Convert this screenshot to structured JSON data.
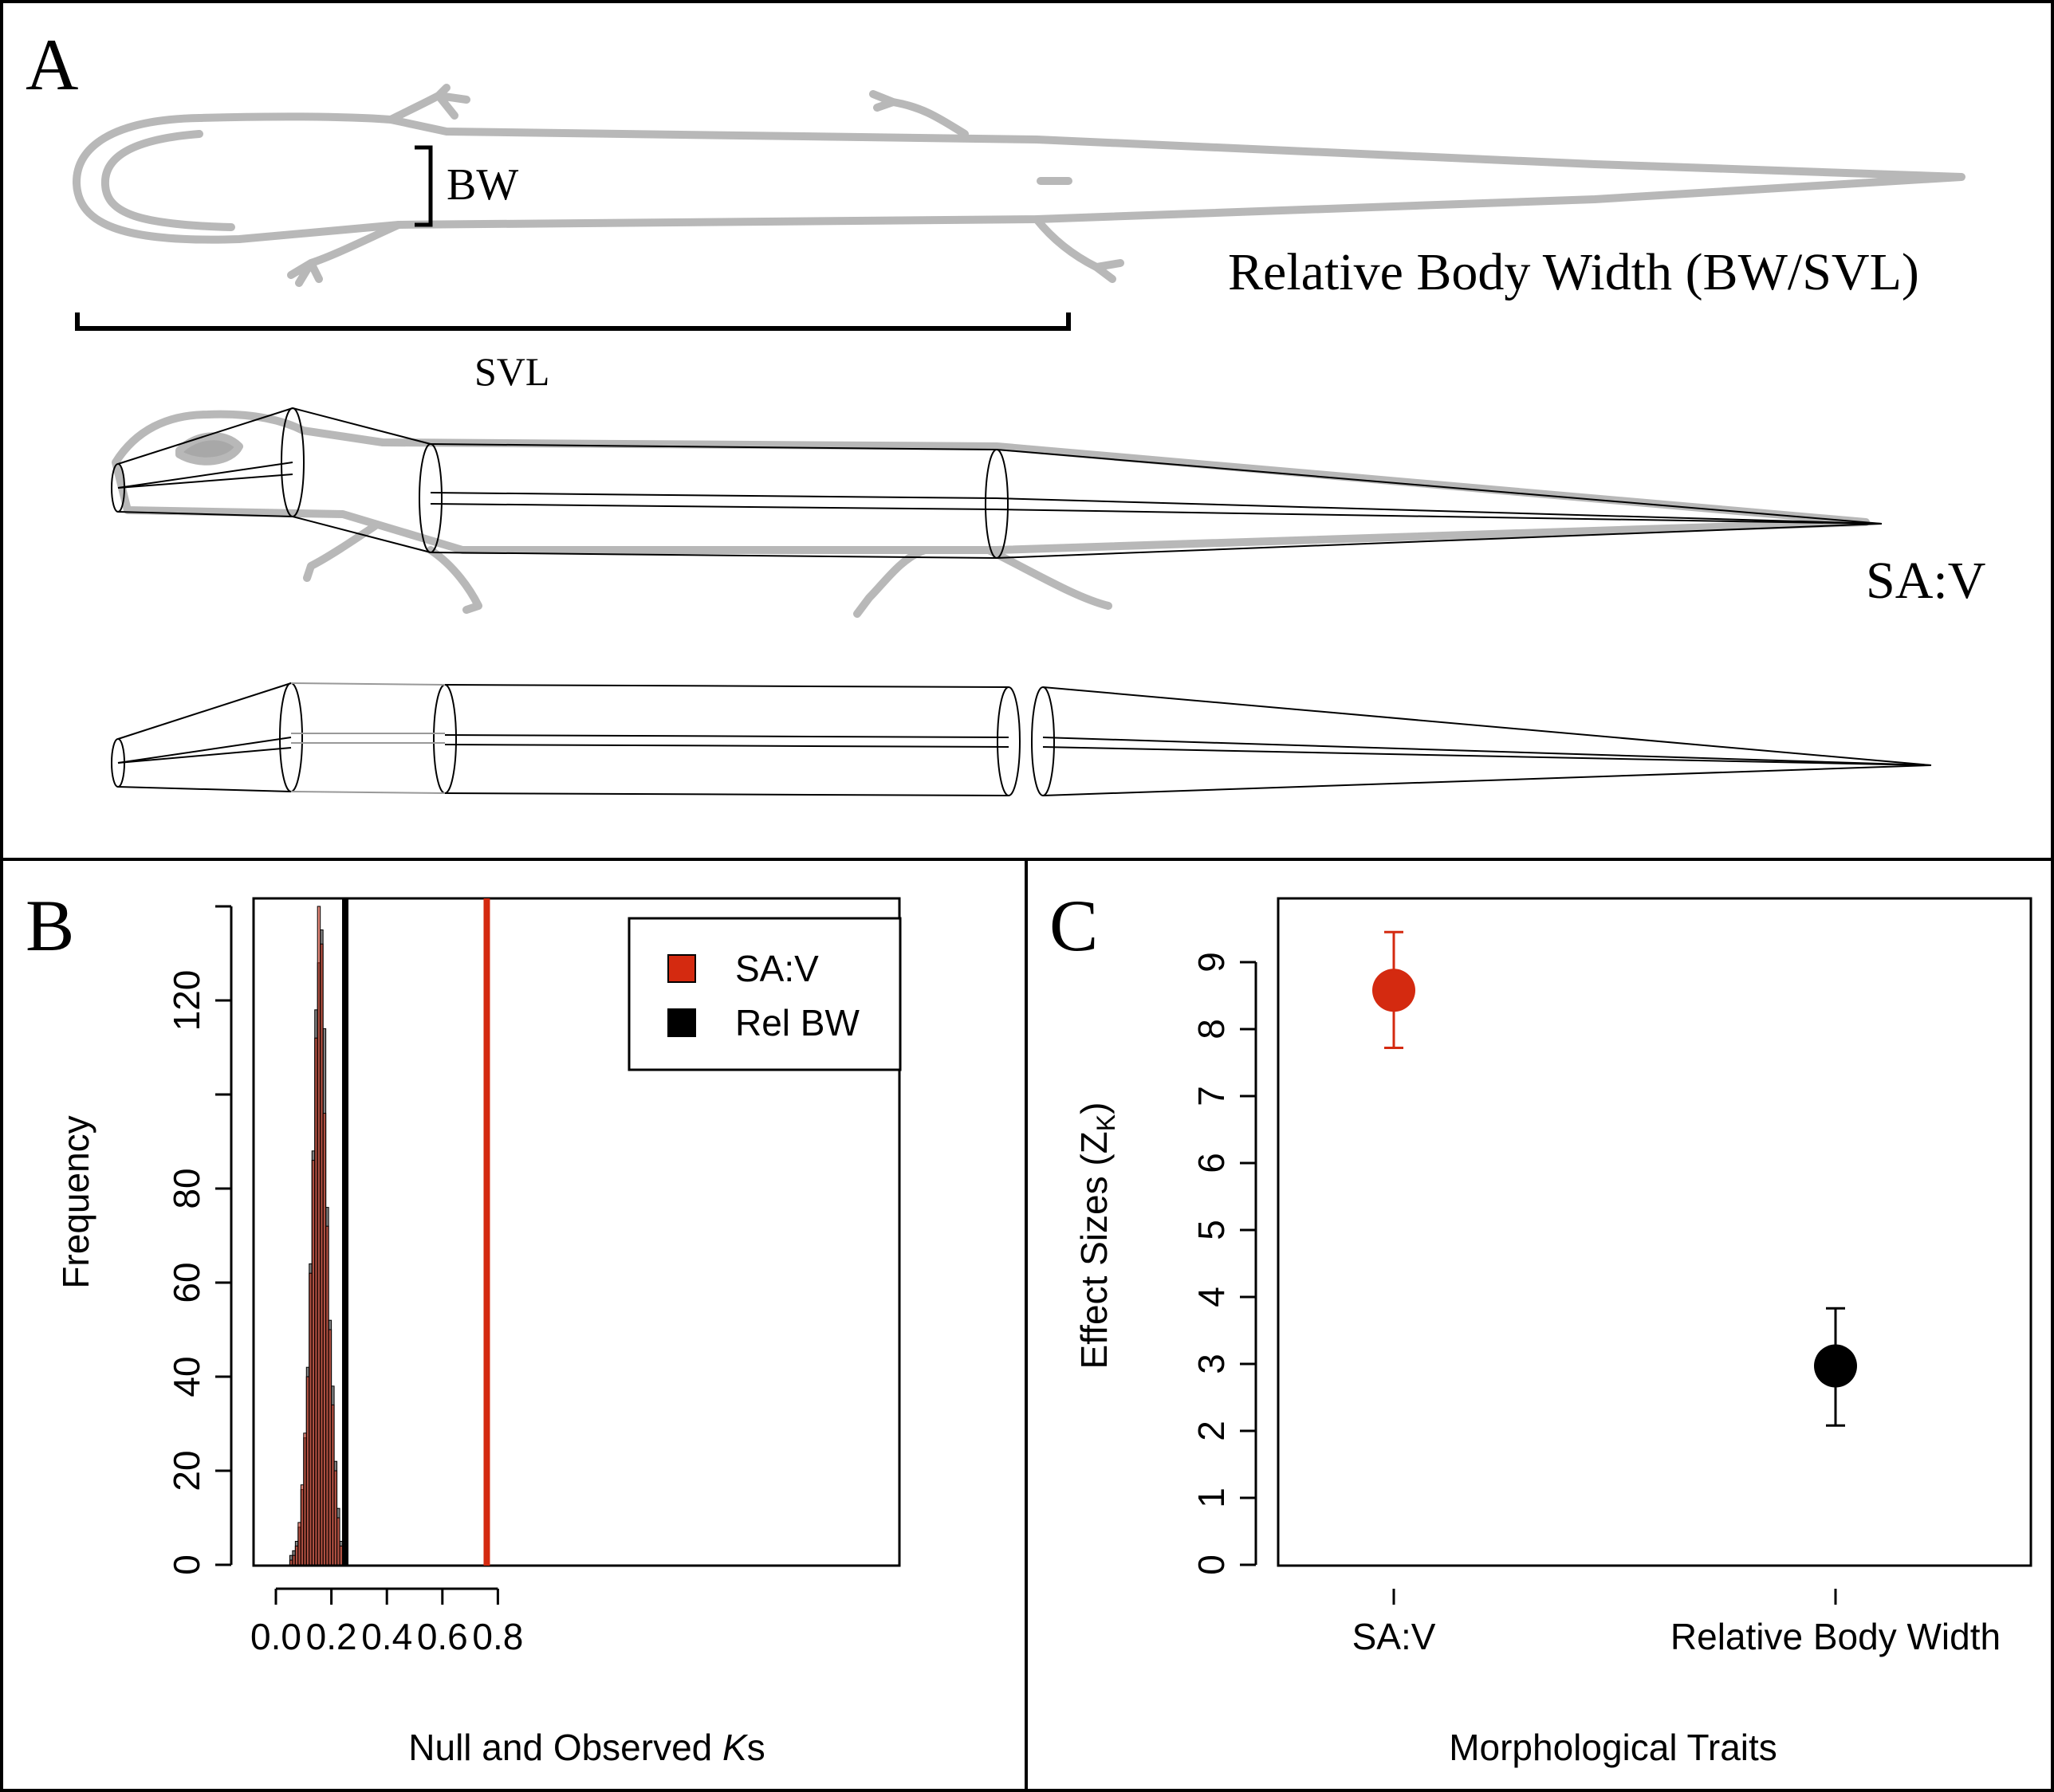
{
  "panel_a": {
    "label": "A",
    "bw_label": "BW",
    "svl_label": "SVL",
    "rel_bw_title": "Relative Body Width (BW/SVL)",
    "sav_title": "SA:V"
  },
  "chart_data": [
    {
      "panel": "B",
      "type": "histogram",
      "xlabel_prefix": "Null and Observed ",
      "xlabel_italic": "K",
      "xlabel_suffix": "s",
      "ylabel": "Frequency",
      "xlim": [
        -0.05,
        0.92
      ],
      "ylim": [
        0,
        140
      ],
      "x_ticks": [
        "0.0",
        "0.2",
        "0.4",
        "0.6",
        "0.8"
      ],
      "x_tick_values": [
        0.0,
        0.2,
        0.4,
        0.6,
        0.8
      ],
      "y_ticks": [
        "0",
        "20",
        "40",
        "60",
        "80",
        "120"
      ],
      "y_tick_values": [
        0,
        20,
        40,
        60,
        80,
        120
      ],
      "y_minor_ticks": [
        100,
        140
      ],
      "bin_width": 0.01,
      "bin_start": 0.05,
      "legend_position": "top-right",
      "series": [
        {
          "name": "SA:V",
          "color": "#d42a10",
          "counts": [
            1,
            2,
            4,
            9,
            17,
            28,
            40,
            62,
            86,
            112,
            140,
            132,
            96,
            72,
            50,
            34,
            20,
            10,
            4,
            1,
            1
          ],
          "observed": 0.76
        },
        {
          "name": "Rel BW",
          "color": "#000000",
          "counts": [
            2,
            3,
            5,
            8,
            16,
            27,
            42,
            64,
            88,
            118,
            128,
            135,
            114,
            76,
            52,
            38,
            22,
            12,
            5,
            2,
            0
          ],
          "observed": 0.25
        }
      ]
    },
    {
      "panel": "C",
      "type": "scatter",
      "xlabel": "Morphological Traits",
      "ylabel_main": "Effect Sizes (Z",
      "ylabel_sub": "K",
      "ylabel_end": ")",
      "ylim": [
        0,
        9.8
      ],
      "y_ticks": [
        "0",
        "1",
        "2",
        "3",
        "4",
        "5",
        "6",
        "7",
        "8",
        "9"
      ],
      "y_tick_values": [
        0,
        1,
        2,
        3,
        4,
        5,
        6,
        7,
        8,
        9
      ],
      "categories": [
        "SA:V",
        "Relative Body Width"
      ],
      "points": [
        {
          "category": "SA:V",
          "value": 8.58,
          "lower": 7.72,
          "upper": 9.45,
          "color": "#d42a10"
        },
        {
          "category": "Relative Body Width",
          "value": 2.97,
          "lower": 2.08,
          "upper": 3.83,
          "color": "#000000"
        }
      ]
    }
  ]
}
